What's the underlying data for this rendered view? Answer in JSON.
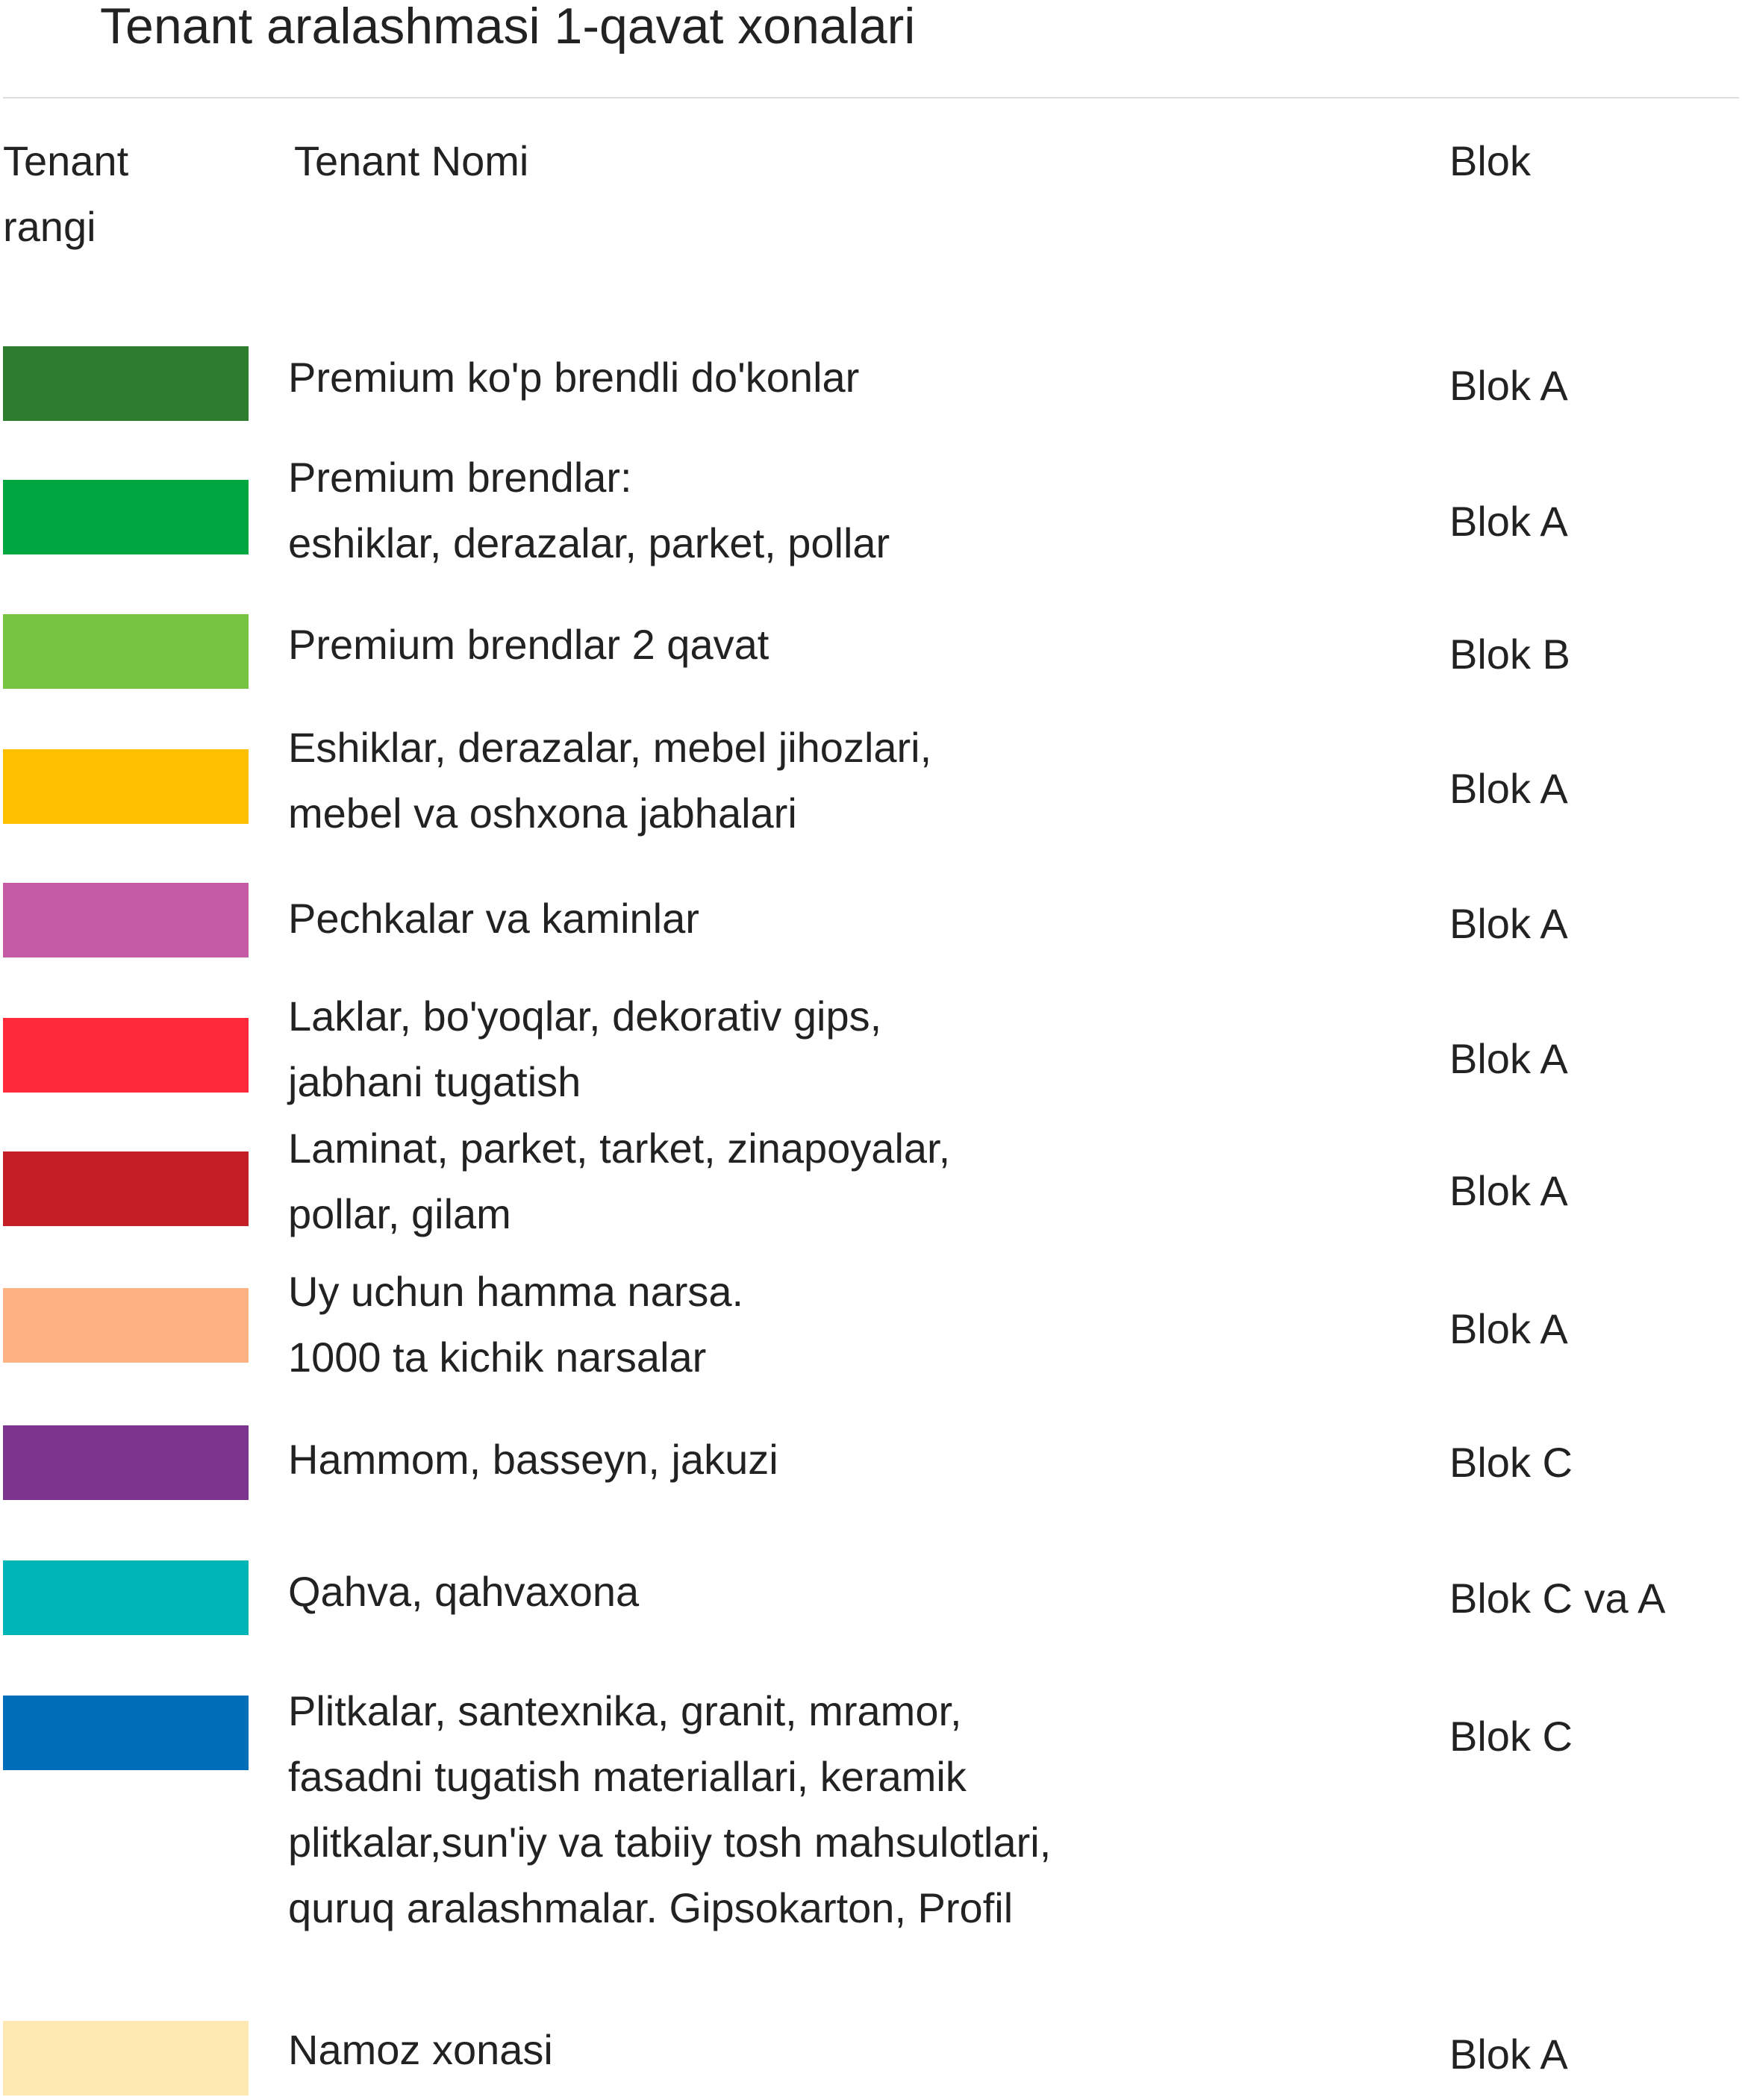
{
  "title": "Tenant aralashmasi 1-qavat xonalari",
  "header": {
    "color": [
      "Tenant",
      "rangi"
    ],
    "name": "Tenant Nomi",
    "block": "Blok"
  },
  "rows": [
    {
      "color": "#2e7d2e",
      "name": [
        "Premium ko'p brendli do'konlar"
      ],
      "block": "Blok A"
    },
    {
      "color": "#00a63f",
      "name": [
        "Premium brendlar:",
        "eshiklar, derazalar, parket, pollar"
      ],
      "block": "Blok A"
    },
    {
      "color": "#76c442",
      "name": [
        "Premium brendlar 2 qavat"
      ],
      "block": "Blok B"
    },
    {
      "color": "#ffc000",
      "name": [
        "Eshiklar, derazalar, mebel jihozlari,",
        "mebel va oshxona jabhalari"
      ],
      "block": "Blok A"
    },
    {
      "color": "#c55ba5",
      "name": [
        "Pechkalar va kaminlar"
      ],
      "block": "Blok A"
    },
    {
      "color": "#fe2a3c",
      "name": [
        "Laklar, bo'yoqlar, dekorativ gips,",
        "jabhani tugatish"
      ],
      "block": "Blok A"
    },
    {
      "color": "#c41e26",
      "name": [
        "Laminat, parket, tarket, zinapoyalar,",
        "pollar, gilam"
      ],
      "block": "Blok A"
    },
    {
      "color": "#ffb385",
      "name": [
        "Uy uchun hamma narsa.",
        "1000 ta kichik narsalar"
      ],
      "block": "Blok A"
    },
    {
      "color": "#7b358e",
      "name": [
        "Hammom, basseyn, jakuzi"
      ],
      "block": "Blok C"
    },
    {
      "color": "#00b5b8",
      "name": [
        "Qahva, qahvaxona"
      ],
      "block": "Blok C va A"
    },
    {
      "color": "#006eb8",
      "name": [
        "Plitkalar, santexnika, granit, mramor,",
        "fasadni tugatish materiallari, keramik",
        "plitkalar,sun'iy va tabiiy tosh mahsulotlari,",
        "quruq aralashmalar. Gipsokarton, Profil"
      ],
      "block": "Blok C"
    },
    {
      "color": "#fde9b1",
      "name": [
        "Namoz xonasi"
      ],
      "block": "Blok A"
    }
  ]
}
